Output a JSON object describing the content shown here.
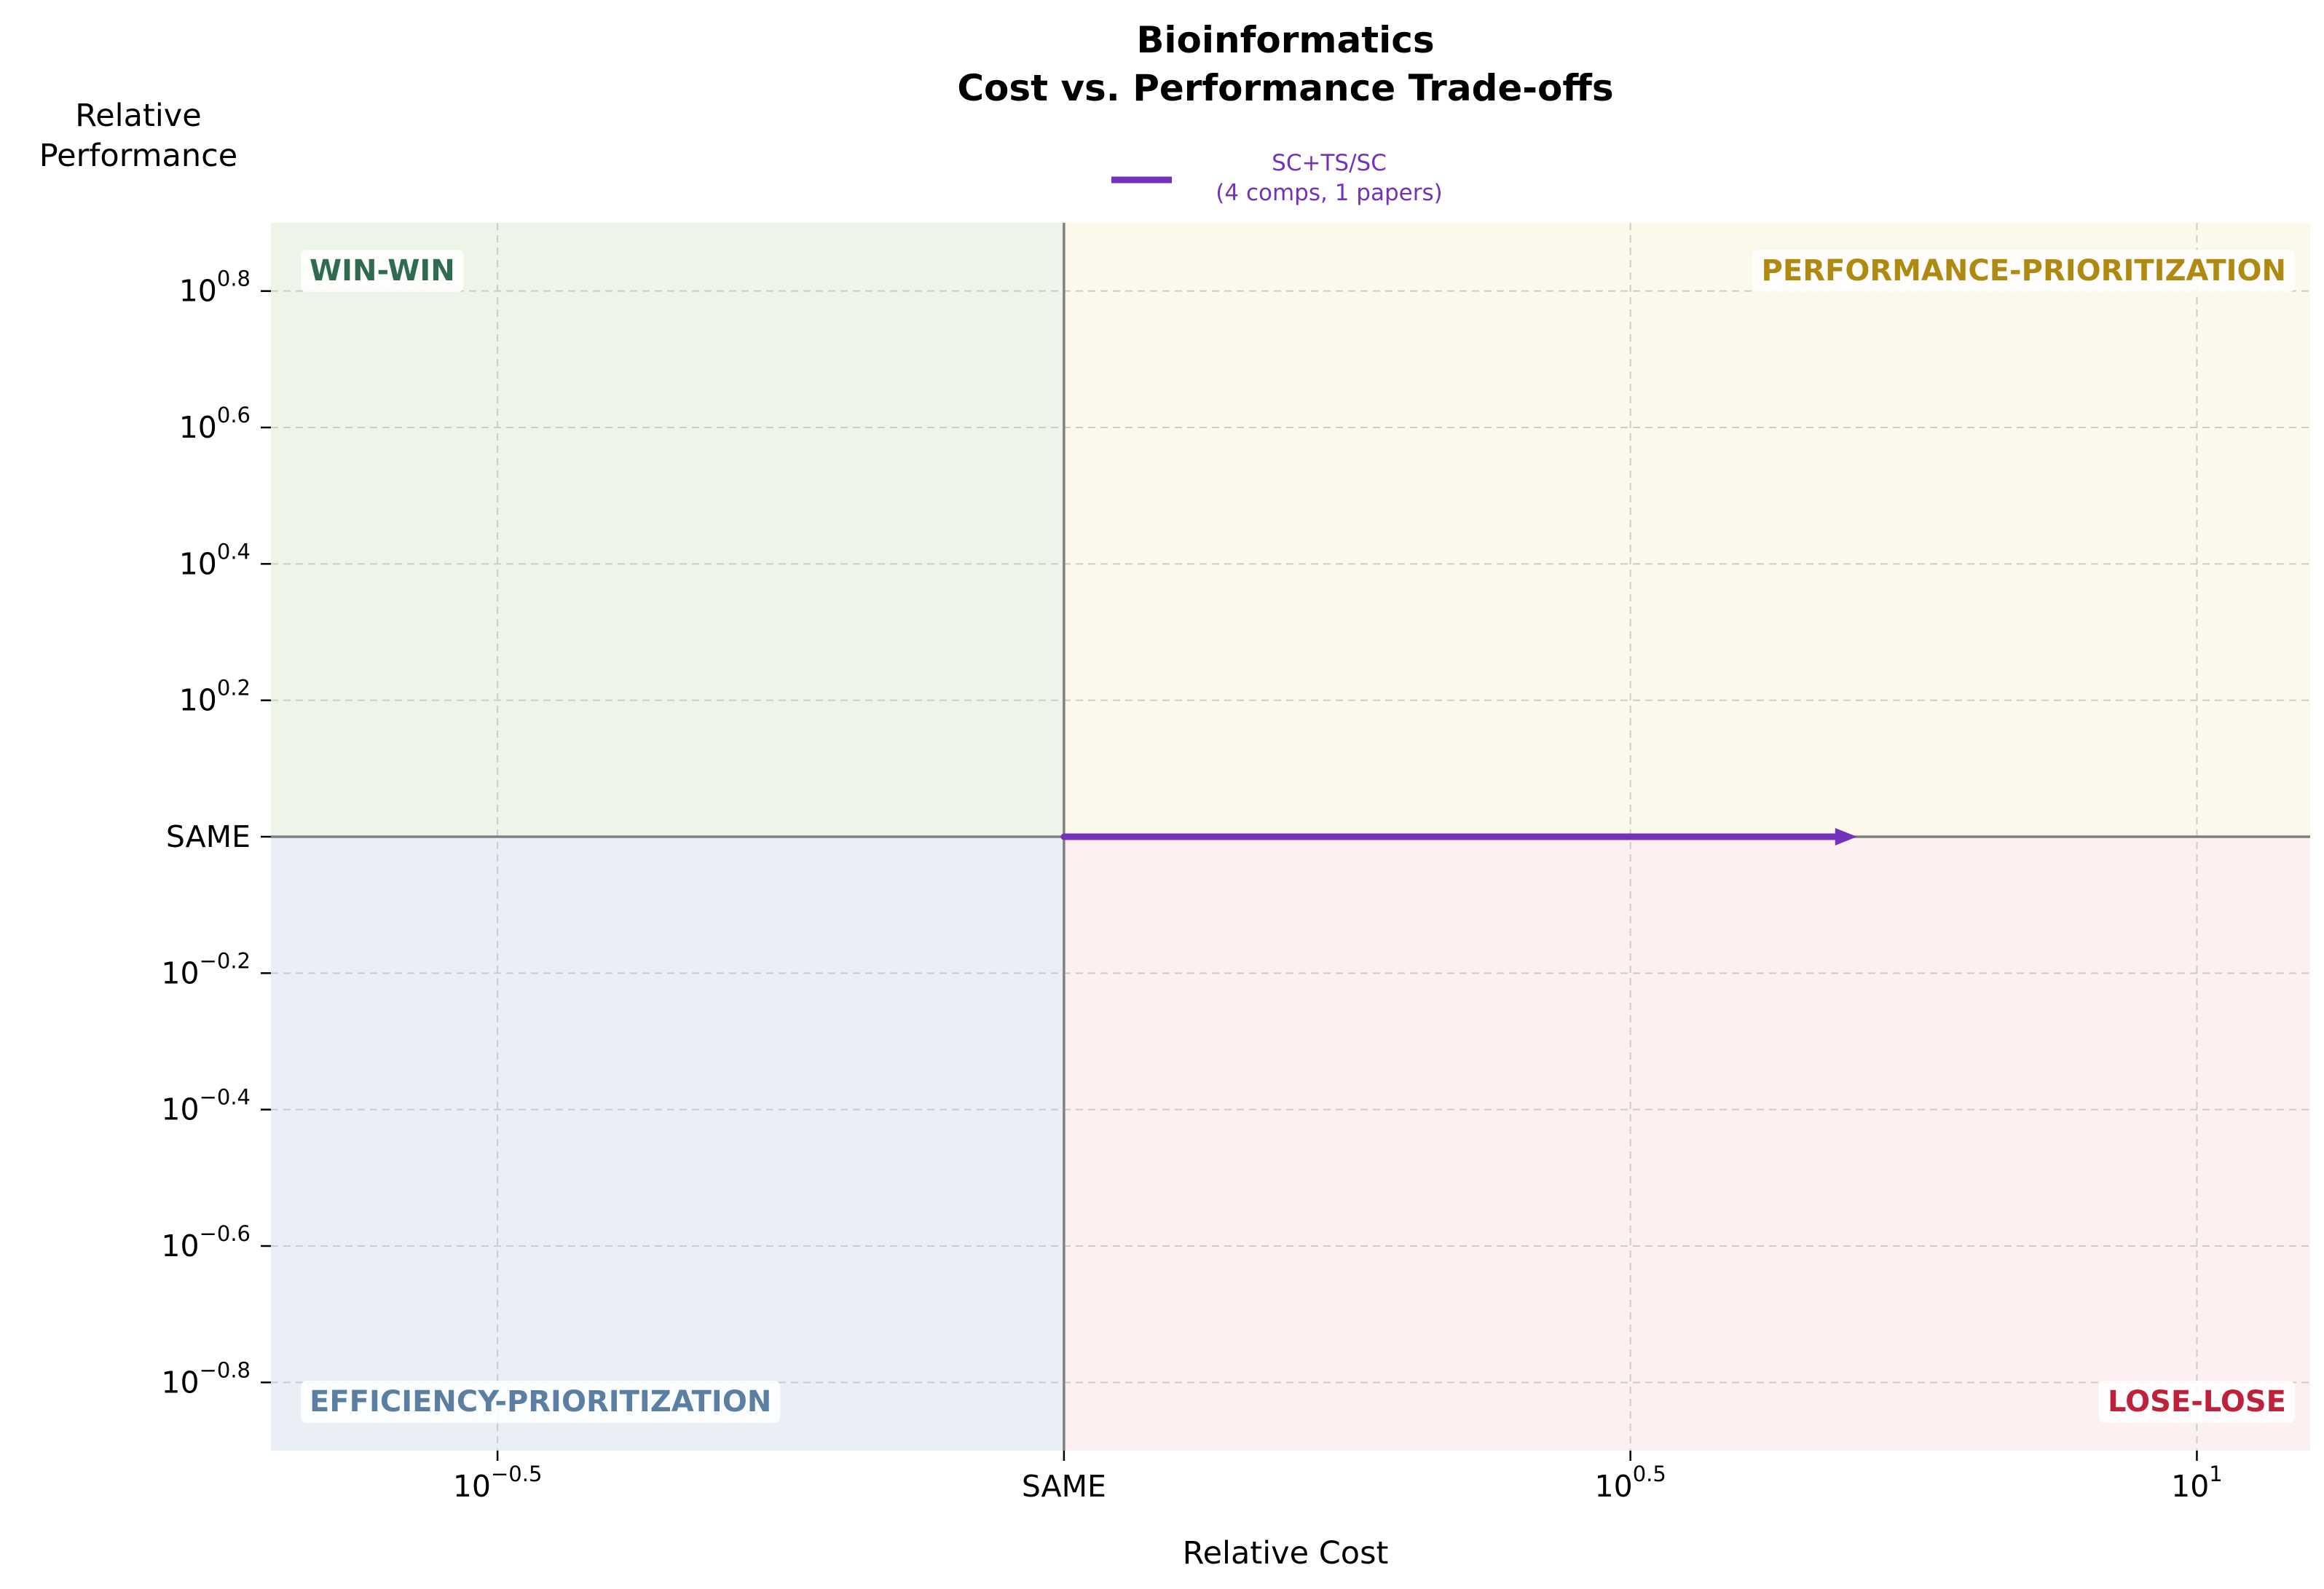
{
  "chart_data": {
    "type": "line",
    "title_lines": [
      "Bioinformatics",
      "Cost vs. Performance Trade-offs"
    ],
    "xlabel": "Relative Cost",
    "ylabel_lines": [
      "Relative",
      "Performance"
    ],
    "x_scale": "log10",
    "y_scale": "log10",
    "xlim_log10": [
      -0.7,
      1.1
    ],
    "ylim_log10": [
      -0.9,
      0.9
    ],
    "x_ticks": [
      {
        "log10": -0.5,
        "base": "10",
        "exp": "−0.5"
      },
      {
        "log10": 0,
        "label": "SAME"
      },
      {
        "log10": 0.5,
        "base": "10",
        "exp": "0.5"
      },
      {
        "log10": 1,
        "base": "10",
        "exp": "1"
      }
    ],
    "y_ticks": [
      {
        "log10": 0.8,
        "base": "10",
        "exp": "0.8"
      },
      {
        "log10": 0.6,
        "base": "10",
        "exp": "0.6"
      },
      {
        "log10": 0.4,
        "base": "10",
        "exp": "0.4"
      },
      {
        "log10": 0.2,
        "base": "10",
        "exp": "0.2"
      },
      {
        "log10": 0,
        "label": "SAME"
      },
      {
        "log10": -0.2,
        "base": "10",
        "exp": "−0.2"
      },
      {
        "log10": -0.4,
        "base": "10",
        "exp": "−0.4"
      },
      {
        "log10": -0.6,
        "base": "10",
        "exp": "−0.6"
      },
      {
        "log10": -0.8,
        "base": "10",
        "exp": "−0.8"
      }
    ],
    "grid": true,
    "quadrants": [
      {
        "name": "WIN-WIN",
        "fill": "#edf5e8",
        "label_color": "#2f6b4f",
        "corner": "top-left"
      },
      {
        "name": "PERFORMANCE-PRIORITIZATION",
        "fill": "#fcf9ec",
        "label_color": "#b08a10",
        "corner": "top-right"
      },
      {
        "name": "EFFICIENCY-PRIORITIZATION",
        "fill": "#eaeef6",
        "label_color": "#5a7fa3",
        "corner": "bottom-left"
      },
      {
        "name": "LOSE-LOSE",
        "fill": "#fdf0f0",
        "label_color": "#c0213a",
        "corner": "bottom-right"
      }
    ],
    "series": [
      {
        "name_lines": [
          "SC+TS/SC",
          "(4 comps, 1 papers)"
        ],
        "color": "#7232bb",
        "arrow": true,
        "points": [
          {
            "x_log10": 0.0,
            "y_log10": 0.0
          },
          {
            "x_log10": 0.7,
            "y_log10": 0.0
          }
        ]
      }
    ],
    "legend": "top-center",
    "colors": {
      "axis_line": "#808080",
      "grid": "#cccccc",
      "text": "#000000"
    }
  }
}
